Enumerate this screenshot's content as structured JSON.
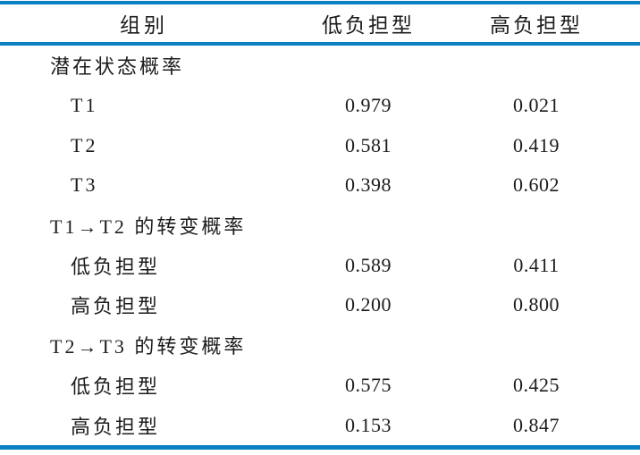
{
  "table": {
    "accent_color": "#0a80c4",
    "text_color": "#1c1c1c",
    "columns": [
      "组别",
      "低负担型",
      "高负担型"
    ],
    "rows": [
      {
        "label": "潜在状态概率",
        "low": "",
        "high": ""
      },
      {
        "label": "T1",
        "low": "0.979",
        "high": "0.021"
      },
      {
        "label": "T2",
        "low": "0.581",
        "high": "0.419"
      },
      {
        "label": "T3",
        "low": "0.398",
        "high": "0.602"
      },
      {
        "label": "T1→T2 的转变概率",
        "low": "",
        "high": ""
      },
      {
        "label": "低负担型",
        "low": "0.589",
        "high": "0.411"
      },
      {
        "label": "高负担型",
        "low": "0.200",
        "high": "0.800"
      },
      {
        "label": "T2→T3 的转变概率",
        "low": "",
        "high": ""
      },
      {
        "label": "低负担型",
        "low": "0.575",
        "high": "0.425"
      },
      {
        "label": "高负担型",
        "low": "0.153",
        "high": "0.847"
      }
    ]
  },
  "chart_data": {
    "type": "table",
    "columns": [
      "组别",
      "低负担型",
      "高负担型"
    ],
    "sections": [
      {
        "title": "潜在状态概率",
        "rows": [
          {
            "组别": "T1",
            "低负担型": 0.979,
            "高负担型": 0.021
          },
          {
            "组别": "T2",
            "低负担型": 0.581,
            "高负担型": 0.419
          },
          {
            "组别": "T3",
            "低负担型": 0.398,
            "高负担型": 0.602
          }
        ]
      },
      {
        "title": "T1→T2 的转变概率",
        "rows": [
          {
            "组别": "低负担型",
            "低负担型": 0.589,
            "高负担型": 0.411
          },
          {
            "组别": "高负担型",
            "低负担型": 0.2,
            "高负担型": 0.8
          }
        ]
      },
      {
        "title": "T2→T3 的转变概率",
        "rows": [
          {
            "组别": "低负担型",
            "低负担型": 0.575,
            "高负担型": 0.425
          },
          {
            "组别": "高负担型",
            "低负担型": 0.153,
            "高负担型": 0.847
          }
        ]
      }
    ]
  }
}
